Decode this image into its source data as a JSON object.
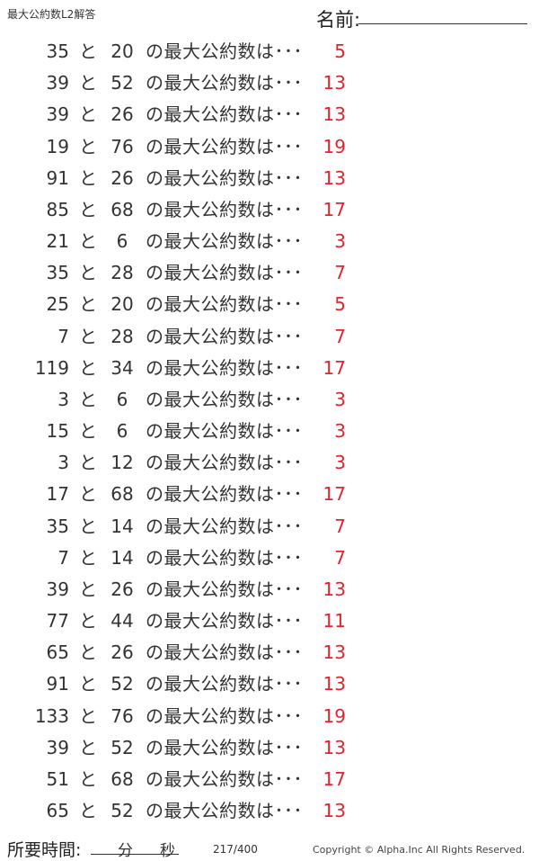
{
  "header": {
    "title": "最大公約数L2解答",
    "name_label": "名前:"
  },
  "connector": "と",
  "question_suffix": "の最大公約数は･･･",
  "rows": [
    {
      "a": "35",
      "b": "20",
      "answer": "5"
    },
    {
      "a": "39",
      "b": "52",
      "answer": "13"
    },
    {
      "a": "39",
      "b": "26",
      "answer": "13"
    },
    {
      "a": "19",
      "b": "76",
      "answer": "19"
    },
    {
      "a": "91",
      "b": "26",
      "answer": "13"
    },
    {
      "a": "85",
      "b": "68",
      "answer": "17"
    },
    {
      "a": "21",
      "b": "6",
      "answer": "3"
    },
    {
      "a": "35",
      "b": "28",
      "answer": "7"
    },
    {
      "a": "25",
      "b": "20",
      "answer": "5"
    },
    {
      "a": "7",
      "b": "28",
      "answer": "7"
    },
    {
      "a": "119",
      "b": "34",
      "answer": "17"
    },
    {
      "a": "3",
      "b": "6",
      "answer": "3"
    },
    {
      "a": "15",
      "b": "6",
      "answer": "3"
    },
    {
      "a": "3",
      "b": "12",
      "answer": "3"
    },
    {
      "a": "17",
      "b": "68",
      "answer": "17"
    },
    {
      "a": "35",
      "b": "14",
      "answer": "7"
    },
    {
      "a": "7",
      "b": "14",
      "answer": "7"
    },
    {
      "a": "39",
      "b": "26",
      "answer": "13"
    },
    {
      "a": "77",
      "b": "44",
      "answer": "11"
    },
    {
      "a": "65",
      "b": "26",
      "answer": "13"
    },
    {
      "a": "91",
      "b": "52",
      "answer": "13"
    },
    {
      "a": "133",
      "b": "76",
      "answer": "19"
    },
    {
      "a": "39",
      "b": "52",
      "answer": "13"
    },
    {
      "a": "51",
      "b": "68",
      "answer": "17"
    },
    {
      "a": "65",
      "b": "52",
      "answer": "13"
    }
  ],
  "footer": {
    "time_label": "所要時間:",
    "minutes": "分",
    "seconds": "秒",
    "page": "217/400",
    "copyright": "Copyright ©  Alpha.Inc All Rights Reserved."
  },
  "colors": {
    "answer": "#e8212b",
    "text": "#333333"
  }
}
